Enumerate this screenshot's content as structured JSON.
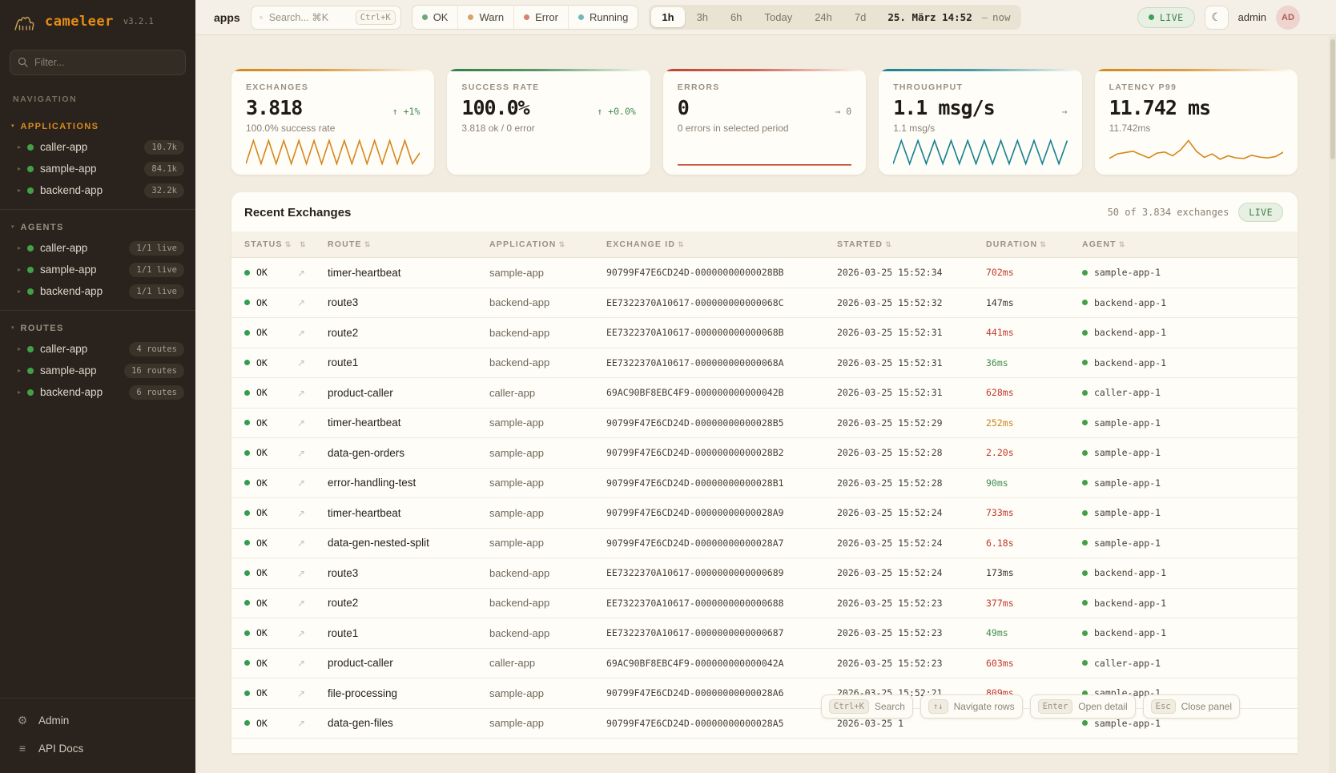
{
  "sidebar": {
    "logo": {
      "name": "cameleer",
      "version": "v3.2.1"
    },
    "filter_placeholder": "Filter...",
    "nav_label": "NAVIGATION",
    "sections": [
      {
        "title": "APPLICATIONS",
        "active": true,
        "items": [
          {
            "label": "caller-app",
            "badge": "10.7k"
          },
          {
            "label": "sample-app",
            "badge": "84.1k"
          },
          {
            "label": "backend-app",
            "badge": "32.2k"
          }
        ]
      },
      {
        "title": "AGENTS",
        "active": false,
        "items": [
          {
            "label": "caller-app",
            "badge": "1/1 live"
          },
          {
            "label": "sample-app",
            "badge": "1/1 live"
          },
          {
            "label": "backend-app",
            "badge": "1/1 live"
          }
        ]
      },
      {
        "title": "ROUTES",
        "active": false,
        "items": [
          {
            "label": "caller-app",
            "badge": "4 routes"
          },
          {
            "label": "sample-app",
            "badge": "16 routes"
          },
          {
            "label": "backend-app",
            "badge": "6 routes"
          }
        ]
      }
    ],
    "footer": [
      {
        "label": "Admin",
        "icon": "gear-icon",
        "glyph": "⚙"
      },
      {
        "label": "API Docs",
        "icon": "docs-icon",
        "glyph": "≡"
      }
    ]
  },
  "topbar": {
    "page_title": "apps",
    "search": {
      "placeholder": "Search... ⌘K",
      "shortcut": "Ctrl+K"
    },
    "status_filters": [
      {
        "label": "OK",
        "color": "#6fa876"
      },
      {
        "label": "Warn",
        "color": "#d4a567"
      },
      {
        "label": "Error",
        "color": "#d97f6e"
      },
      {
        "label": "Running",
        "color": "#72b8bd"
      }
    ],
    "time_ranges": [
      "1h",
      "3h",
      "6h",
      "Today",
      "24h",
      "7d"
    ],
    "active_range": "1h",
    "date_label": "25. März 14:52",
    "date_sep": "—",
    "date_end": "now",
    "live_label": "LIVE",
    "user": "admin",
    "avatar": "AD"
  },
  "cards": [
    {
      "title": "EXCHANGES",
      "value": "3.818",
      "delta": "↑ +1%",
      "delta_color": "green",
      "sub": "100.0% success rate",
      "accent": "#d4861a",
      "spark_color": "#d4861a",
      "spark": [
        0.08,
        0.95,
        0.08,
        0.95,
        0.08,
        0.95,
        0.08,
        0.95,
        0.08,
        0.95,
        0.08,
        0.95,
        0.08,
        0.95,
        0.08,
        0.95,
        0.08,
        0.95,
        0.08,
        0.95,
        0.08,
        0.95,
        0.08,
        0.5
      ]
    },
    {
      "title": "SUCCESS RATE",
      "value": "100.0%",
      "delta": "↑ +0.0%",
      "delta_color": "green",
      "sub": "3.818 ok / 0 error",
      "accent": "#2f7d46",
      "spark_color": "#2f7d46",
      "spark": []
    },
    {
      "title": "ERRORS",
      "value": "0",
      "delta": "→ 0",
      "delta_color": "gray",
      "sub": "0 errors in selected period",
      "accent": "#c2402f",
      "spark_color": "#c2402f",
      "spark": [
        0.04,
        0.04
      ]
    },
    {
      "title": "THROUGHPUT",
      "value": "1.1 msg/s",
      "delta": "→",
      "delta_color": "gray",
      "sub": "1.1 msg/s",
      "accent": "#16808f",
      "spark_color": "#16808f",
      "spark": [
        0.08,
        0.95,
        0.08,
        0.95,
        0.08,
        0.95,
        0.08,
        0.95,
        0.08,
        0.95,
        0.08,
        0.95,
        0.08,
        0.95,
        0.08,
        0.95,
        0.08,
        0.95,
        0.08,
        0.95,
        0.08,
        0.95
      ]
    },
    {
      "title": "LATENCY P99",
      "value": "11.742 ms",
      "delta": "",
      "delta_color": "gray",
      "sub": "11.742ms",
      "accent": "#d4861a",
      "spark_color": "#d4861a",
      "spark": [
        0.28,
        0.45,
        0.5,
        0.55,
        0.42,
        0.3,
        0.48,
        0.52,
        0.38,
        0.6,
        0.95,
        0.55,
        0.32,
        0.45,
        0.25,
        0.38,
        0.3,
        0.28,
        0.4,
        0.33,
        0.3,
        0.35,
        0.52
      ]
    }
  ],
  "table": {
    "title": "Recent Exchanges",
    "summary": "50 of 3.834 exchanges",
    "live_label": "LIVE",
    "columns": [
      "STATUS",
      "",
      "ROUTE",
      "APPLICATION",
      "EXCHANGE ID",
      "STARTED",
      "DURATION",
      "AGENT"
    ],
    "rows": [
      {
        "status": "OK",
        "route": "timer-heartbeat",
        "app": "sample-app",
        "exchange_id": "90799F47E6CD24D-00000000000028BB",
        "started": "2026-03-25 15:52:34",
        "duration": "702ms",
        "duration_color": "red",
        "agent": "sample-app-1"
      },
      {
        "status": "OK",
        "route": "route3",
        "app": "backend-app",
        "exchange_id": "EE7322370A10617-000000000000068C",
        "started": "2026-03-25 15:52:32",
        "duration": "147ms",
        "duration_color": "default",
        "agent": "backend-app-1"
      },
      {
        "status": "OK",
        "route": "route2",
        "app": "backend-app",
        "exchange_id": "EE7322370A10617-000000000000068B",
        "started": "2026-03-25 15:52:31",
        "duration": "441ms",
        "duration_color": "red",
        "agent": "backend-app-1"
      },
      {
        "status": "OK",
        "route": "route1",
        "app": "backend-app",
        "exchange_id": "EE7322370A10617-000000000000068A",
        "started": "2026-03-25 15:52:31",
        "duration": "36ms",
        "duration_color": "green",
        "agent": "backend-app-1"
      },
      {
        "status": "OK",
        "route": "product-caller",
        "app": "caller-app",
        "exchange_id": "69AC90BF8EBC4F9-000000000000042B",
        "started": "2026-03-25 15:52:31",
        "duration": "628ms",
        "duration_color": "red",
        "agent": "caller-app-1"
      },
      {
        "status": "OK",
        "route": "timer-heartbeat",
        "app": "sample-app",
        "exchange_id": "90799F47E6CD24D-00000000000028B5",
        "started": "2026-03-25 15:52:29",
        "duration": "252ms",
        "duration_color": "amber",
        "agent": "sample-app-1"
      },
      {
        "status": "OK",
        "route": "data-gen-orders",
        "app": "sample-app",
        "exchange_id": "90799F47E6CD24D-00000000000028B2",
        "started": "2026-03-25 15:52:28",
        "duration": "2.20s",
        "duration_color": "red",
        "agent": "sample-app-1"
      },
      {
        "status": "OK",
        "route": "error-handling-test",
        "app": "sample-app",
        "exchange_id": "90799F47E6CD24D-00000000000028B1",
        "started": "2026-03-25 15:52:28",
        "duration": "90ms",
        "duration_color": "green",
        "agent": "sample-app-1"
      },
      {
        "status": "OK",
        "route": "timer-heartbeat",
        "app": "sample-app",
        "exchange_id": "90799F47E6CD24D-00000000000028A9",
        "started": "2026-03-25 15:52:24",
        "duration": "733ms",
        "duration_color": "red",
        "agent": "sample-app-1"
      },
      {
        "status": "OK",
        "route": "data-gen-nested-split",
        "app": "sample-app",
        "exchange_id": "90799F47E6CD24D-00000000000028A7",
        "started": "2026-03-25 15:52:24",
        "duration": "6.18s",
        "duration_color": "red",
        "agent": "sample-app-1"
      },
      {
        "status": "OK",
        "route": "route3",
        "app": "backend-app",
        "exchange_id": "EE7322370A10617-0000000000000689",
        "started": "2026-03-25 15:52:24",
        "duration": "173ms",
        "duration_color": "default",
        "agent": "backend-app-1"
      },
      {
        "status": "OK",
        "route": "route2",
        "app": "backend-app",
        "exchange_id": "EE7322370A10617-0000000000000688",
        "started": "2026-03-25 15:52:23",
        "duration": "377ms",
        "duration_color": "red",
        "agent": "backend-app-1"
      },
      {
        "status": "OK",
        "route": "route1",
        "app": "backend-app",
        "exchange_id": "EE7322370A10617-0000000000000687",
        "started": "2026-03-25 15:52:23",
        "duration": "49ms",
        "duration_color": "green",
        "agent": "backend-app-1"
      },
      {
        "status": "OK",
        "route": "product-caller",
        "app": "caller-app",
        "exchange_id": "69AC90BF8EBC4F9-000000000000042A",
        "started": "2026-03-25 15:52:23",
        "duration": "603ms",
        "duration_color": "red",
        "agent": "caller-app-1"
      },
      {
        "status": "OK",
        "route": "file-processing",
        "app": "sample-app",
        "exchange_id": "90799F47E6CD24D-00000000000028A6",
        "started": "2026-03-25 15:52:21",
        "duration": "809ms",
        "duration_color": "red",
        "agent": "sample-app-1"
      },
      {
        "status": "OK",
        "route": "data-gen-files",
        "app": "sample-app",
        "exchange_id": "90799F47E6CD24D-00000000000028A5",
        "started": "2026-03-25 1",
        "duration": "",
        "duration_color": "default",
        "agent": "sample-app-1"
      }
    ]
  },
  "footer_hints": [
    {
      "key": "Ctrl+K",
      "label": "Search"
    },
    {
      "key": "↑↓",
      "label": "Navigate rows"
    },
    {
      "key": "Enter",
      "label": "Open detail"
    },
    {
      "key": "Esc",
      "label": "Close panel"
    }
  ],
  "glyphs": {
    "sort": "⇅",
    "item_caret": "▸",
    "section_caret": "▾",
    "trend": "↗",
    "moon": "☾"
  }
}
